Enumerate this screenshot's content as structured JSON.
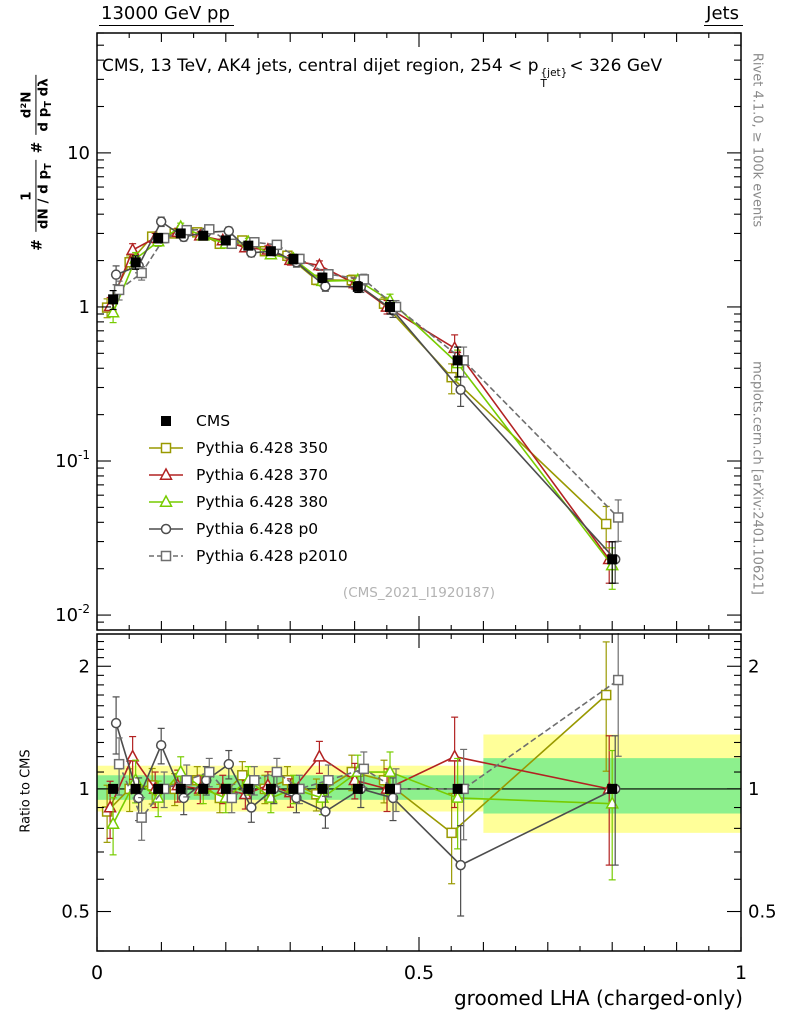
{
  "header": {
    "left": "13000 GeV pp",
    "right": "Jets"
  },
  "title": {
    "t1": "CMS, 13 TeV, AK4 jets, central dijet region, 254 < p",
    "sup": "{jet}",
    "sub": "T",
    "t2": "< 326 GeV"
  },
  "ylabel": {
    "h1": "#",
    "f1n": "1",
    "f1d": "dN / d p",
    "f1d_sub": "T",
    "h2": "#",
    "f2n": "d²N",
    "f2d": "d p",
    "f2d_sub": "T",
    "f2d_b": " dλ"
  },
  "side": {
    "right_top": "Rivet 4.1.0, ≥ 100k events",
    "right_bottom": "mcplots.cern.ch [arXiv:2401.10621]"
  },
  "watermark": "(CMS_2021_I1920187)",
  "xaxis": {
    "title": "groomed LHA (charged-only)",
    "ticks": [
      {
        "v": 0,
        "t": "0"
      },
      {
        "v": 0.5,
        "t": "0.5"
      },
      {
        "v": 1,
        "t": "1"
      }
    ]
  },
  "chart_data": {
    "type": "line",
    "title": "CMS, 13 TeV, AK4 jets, central dijet region, 254 < p_T^{jet} < 326 GeV",
    "xlabel": "groomed LHA (charged-only)",
    "ylabel": "# 1/(dN/dp_T) # d2N/(dp_T dlambda)",
    "xlim": [
      0,
      1
    ],
    "x": [
      0.025,
      0.06,
      0.095,
      0.13,
      0.165,
      0.2,
      0.235,
      0.27,
      0.305,
      0.35,
      0.405,
      0.455,
      0.56,
      0.8
    ],
    "main_panel": {
      "ylog": true,
      "ylim": [
        0.008,
        60
      ],
      "yticks": [
        {
          "v": 10,
          "t": "10"
        },
        {
          "v": 1,
          "t": "1"
        },
        {
          "v": 0.1,
          "t": "10",
          "e": "-1"
        },
        {
          "v": 0.01,
          "t": "10",
          "e": "-2"
        }
      ],
      "err_frac": [
        0.14,
        0.1,
        0.07,
        0.06,
        0.06,
        0.06,
        0.06,
        0.06,
        0.07,
        0.07,
        0.08,
        0.1,
        0.22,
        0.3
      ]
    },
    "ratio_panel": {
      "ylog": true,
      "ylim": [
        0.4,
        2.4
      ],
      "ylabel": "Ratio to CMS",
      "yticks": [
        {
          "v": 0.5,
          "t": "0.5"
        },
        {
          "v": 1,
          "t": "1"
        },
        {
          "v": 2,
          "t": "2"
        }
      ],
      "err_frac": [
        0.16,
        0.12,
        0.1,
        0.09,
        0.08,
        0.08,
        0.08,
        0.08,
        0.08,
        0.09,
        0.1,
        0.12,
        0.25,
        0.35
      ],
      "band_colors": {
        "yellow": "#ffff99",
        "green": "#8df08d"
      },
      "bands": [
        {
          "x0": 0.0,
          "x1": 0.6,
          "y0": 0.88,
          "y1": 1.14,
          "color_key": "yellow"
        },
        {
          "x0": 0.0,
          "x1": 0.6,
          "y0": 0.94,
          "y1": 1.08,
          "color_key": "green"
        },
        {
          "x0": 0.6,
          "x1": 1.0,
          "y0": 0.78,
          "y1": 1.36,
          "color_key": "yellow"
        },
        {
          "x0": 0.6,
          "x1": 1.0,
          "y0": 0.87,
          "y1": 1.19,
          "color_key": "green"
        }
      ]
    },
    "series": [
      {
        "name": "CMS",
        "color": "#000000",
        "marker": "square-filled",
        "line": "none",
        "values": [
          1.12,
          1.95,
          2.8,
          3.0,
          2.9,
          2.7,
          2.5,
          2.3,
          2.05,
          1.55,
          1.35,
          1.0,
          0.45,
          0.023
        ],
        "ratio": [
          1,
          1,
          1,
          1,
          1,
          1,
          1,
          1,
          1,
          1,
          1,
          1,
          1,
          1
        ]
      },
      {
        "name": "Pythia 6.428 350",
        "color": "#999900",
        "marker": "square-open",
        "line": "solid",
        "values": [
          0.99,
          1.95,
          2.86,
          3.0,
          3.05,
          2.57,
          2.7,
          2.3,
          2.15,
          1.5,
          1.49,
          1.05,
          0.35,
          0.039
        ],
        "ratio": [
          0.88,
          1.0,
          1.02,
          1.0,
          1.05,
          0.95,
          1.08,
          1.0,
          1.05,
          0.97,
          1.1,
          1.05,
          0.78,
          1.7
        ]
      },
      {
        "name": "Pythia 6.428 370",
        "color": "#b22222",
        "marker": "triangle-open",
        "line": "solid",
        "values": [
          1.01,
          2.34,
          2.8,
          3.06,
          2.9,
          2.7,
          2.43,
          2.35,
          2.01,
          1.86,
          1.42,
          1.0,
          0.54,
          0.023
        ],
        "ratio": [
          0.9,
          1.2,
          1.0,
          1.02,
          1.0,
          1.0,
          0.97,
          1.02,
          0.98,
          1.2,
          1.05,
          1.0,
          1.2,
          1.0
        ]
      },
      {
        "name": "Pythia 6.428 380",
        "color": "#77cc00",
        "marker": "triangle-open",
        "line": "solid",
        "values": [
          0.92,
          2.05,
          2.66,
          3.3,
          2.9,
          2.57,
          2.63,
          2.19,
          2.05,
          1.47,
          1.49,
          1.1,
          0.43,
          0.021
        ],
        "ratio": [
          0.82,
          1.05,
          0.95,
          1.1,
          1.0,
          0.95,
          1.05,
          0.95,
          1.0,
          0.95,
          1.1,
          1.1,
          0.95,
          0.92
        ]
      },
      {
        "name": "Pythia 6.428 p0",
        "color": "#4d4d4d",
        "marker": "circle-open",
        "line": "solid",
        "values": [
          1.62,
          1.85,
          3.58,
          2.85,
          3.05,
          3.11,
          2.25,
          2.3,
          1.95,
          1.36,
          1.35,
          0.95,
          0.29,
          0.023
        ],
        "ratio": [
          1.45,
          0.95,
          1.28,
          0.95,
          1.05,
          1.15,
          0.9,
          1.0,
          0.95,
          0.88,
          1.0,
          0.95,
          0.65,
          1.0
        ]
      },
      {
        "name": "Pythia 6.428 p2010",
        "color": "#6e6e6e",
        "marker": "square-open",
        "line": "dashed",
        "values": [
          1.29,
          1.66,
          2.8,
          3.15,
          3.19,
          2.57,
          2.63,
          2.53,
          2.05,
          1.63,
          1.51,
          1.0,
          0.45,
          0.043
        ],
        "ratio": [
          1.15,
          0.85,
          1.0,
          1.05,
          1.1,
          0.95,
          1.05,
          1.1,
          1.0,
          1.05,
          1.12,
          1.0,
          1.0,
          1.85
        ]
      }
    ]
  }
}
